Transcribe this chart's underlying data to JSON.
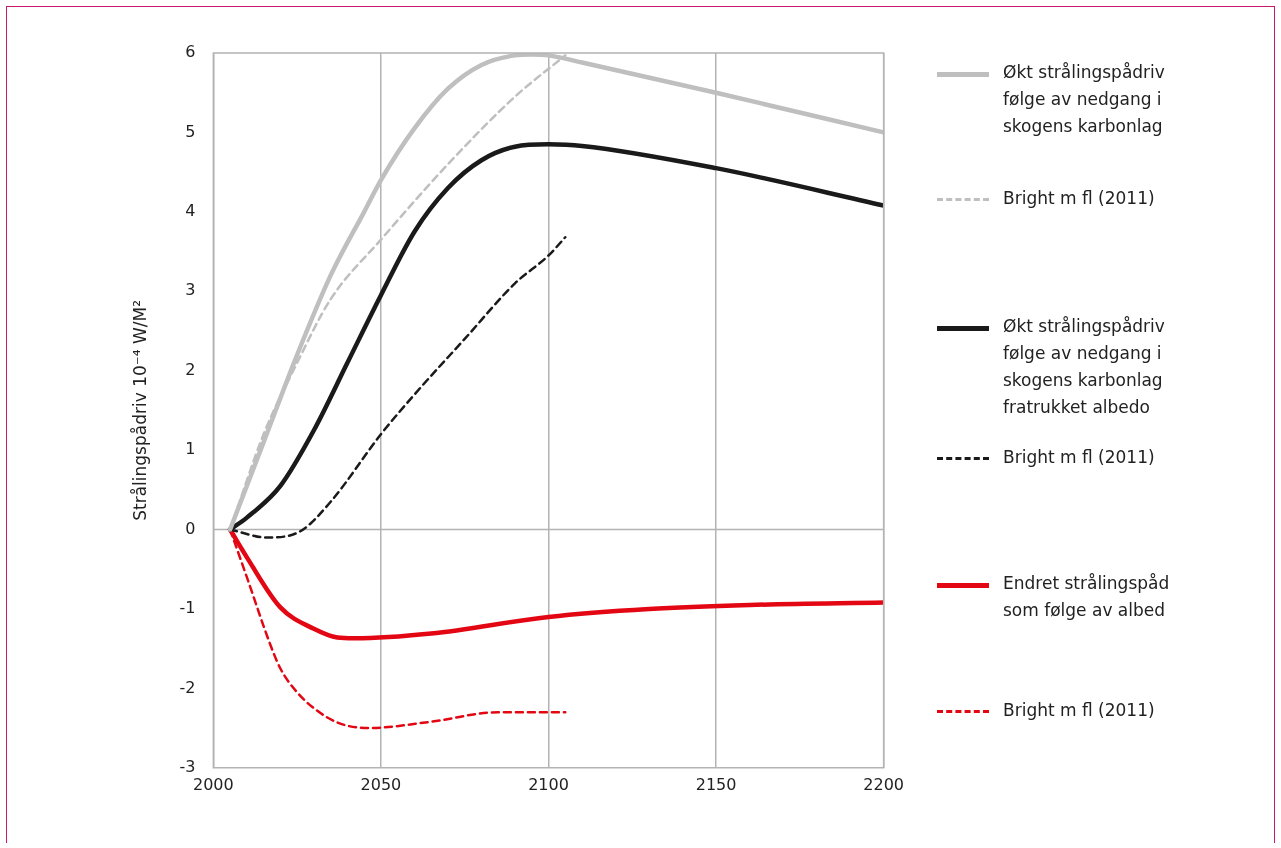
{
  "chart_data": {
    "type": "line",
    "ylabel": "Strålingspådriv 10⁻⁴ W/M²",
    "xlim": [
      2000,
      2200
    ],
    "xticks": [
      2000,
      2050,
      2100,
      2150,
      2200
    ],
    "ylim": [
      -3,
      6
    ],
    "yticks": [
      -3,
      -2,
      -1,
      0,
      1,
      2,
      3,
      4,
      5,
      6
    ],
    "grid": "x",
    "legend": "right",
    "marker": "none",
    "ref_lines": [
      {
        "axis": "y",
        "value": 0,
        "color": "#b3b3b3"
      }
    ],
    "series": [
      {
        "name": "Økt strålingspådriv følge av nedgang i skogens karbonlag",
        "color": "#bfbfbf",
        "line_style": "solid",
        "x": [
          2005,
          2015,
          2025,
          2035,
          2045,
          2050,
          2060,
          2070,
          2080,
          2090,
          2095,
          2100,
          2110,
          2150,
          2200
        ],
        "values": [
          0,
          1.1,
          2.2,
          3.2,
          4.0,
          4.4,
          5.05,
          5.55,
          5.85,
          5.97,
          5.98,
          5.97,
          5.88,
          5.5,
          5.0
        ]
      },
      {
        "name": "Bright m fl (2011)",
        "color": "#bfbfbf",
        "line_style": "dashed",
        "x": [
          2005,
          2015,
          2025,
          2035,
          2050,
          2070,
          2090,
          2105
        ],
        "values": [
          0,
          1.2,
          2.1,
          2.9,
          3.65,
          4.6,
          5.45,
          5.97
        ]
      },
      {
        "name": "Økt strålingspådriv følge av nedgang i skogens karbonlag fratrukket albedo",
        "color": "#1a1a1a",
        "line_style": "solid",
        "x": [
          2005,
          2010,
          2020,
          2030,
          2040,
          2050,
          2060,
          2070,
          2080,
          2090,
          2100,
          2110,
          2150,
          2200
        ],
        "values": [
          0,
          0.15,
          0.55,
          1.25,
          2.1,
          2.95,
          3.75,
          4.3,
          4.65,
          4.82,
          4.85,
          4.83,
          4.55,
          4.08
        ]
      },
      {
        "name": "Bright m fl (2011)",
        "color": "#1a1a1a",
        "line_style": "dashed",
        "x": [
          2005,
          2016,
          2026,
          2035,
          2050,
          2060,
          2075,
          2090,
          2100,
          2105
        ],
        "values": [
          0,
          -0.1,
          -0.02,
          0.35,
          1.2,
          1.7,
          2.4,
          3.1,
          3.45,
          3.68
        ]
      },
      {
        "name": "Endret strålingspåd som følge av albed",
        "color": "#e30613",
        "line_style": "solid",
        "x": [
          2005,
          2010,
          2020,
          2030,
          2037,
          2042,
          2065,
          2100,
          2130,
          2160,
          2200
        ],
        "values": [
          0,
          -0.35,
          -0.98,
          -1.25,
          -1.36,
          -1.37,
          -1.31,
          -1.1,
          -1.0,
          -0.95,
          -0.92
        ]
      },
      {
        "name": "Bright m fl (2011)",
        "color": "#e30613",
        "line_style": "dashed",
        "x": [
          2005,
          2010,
          2017,
          2020,
          2025,
          2030,
          2037,
          2046,
          2065,
          2085,
          2105
        ],
        "values": [
          0,
          -0.6,
          -1.45,
          -1.75,
          -2.05,
          -2.25,
          -2.43,
          -2.5,
          -2.42,
          -2.3,
          -2.3
        ]
      }
    ]
  }
}
